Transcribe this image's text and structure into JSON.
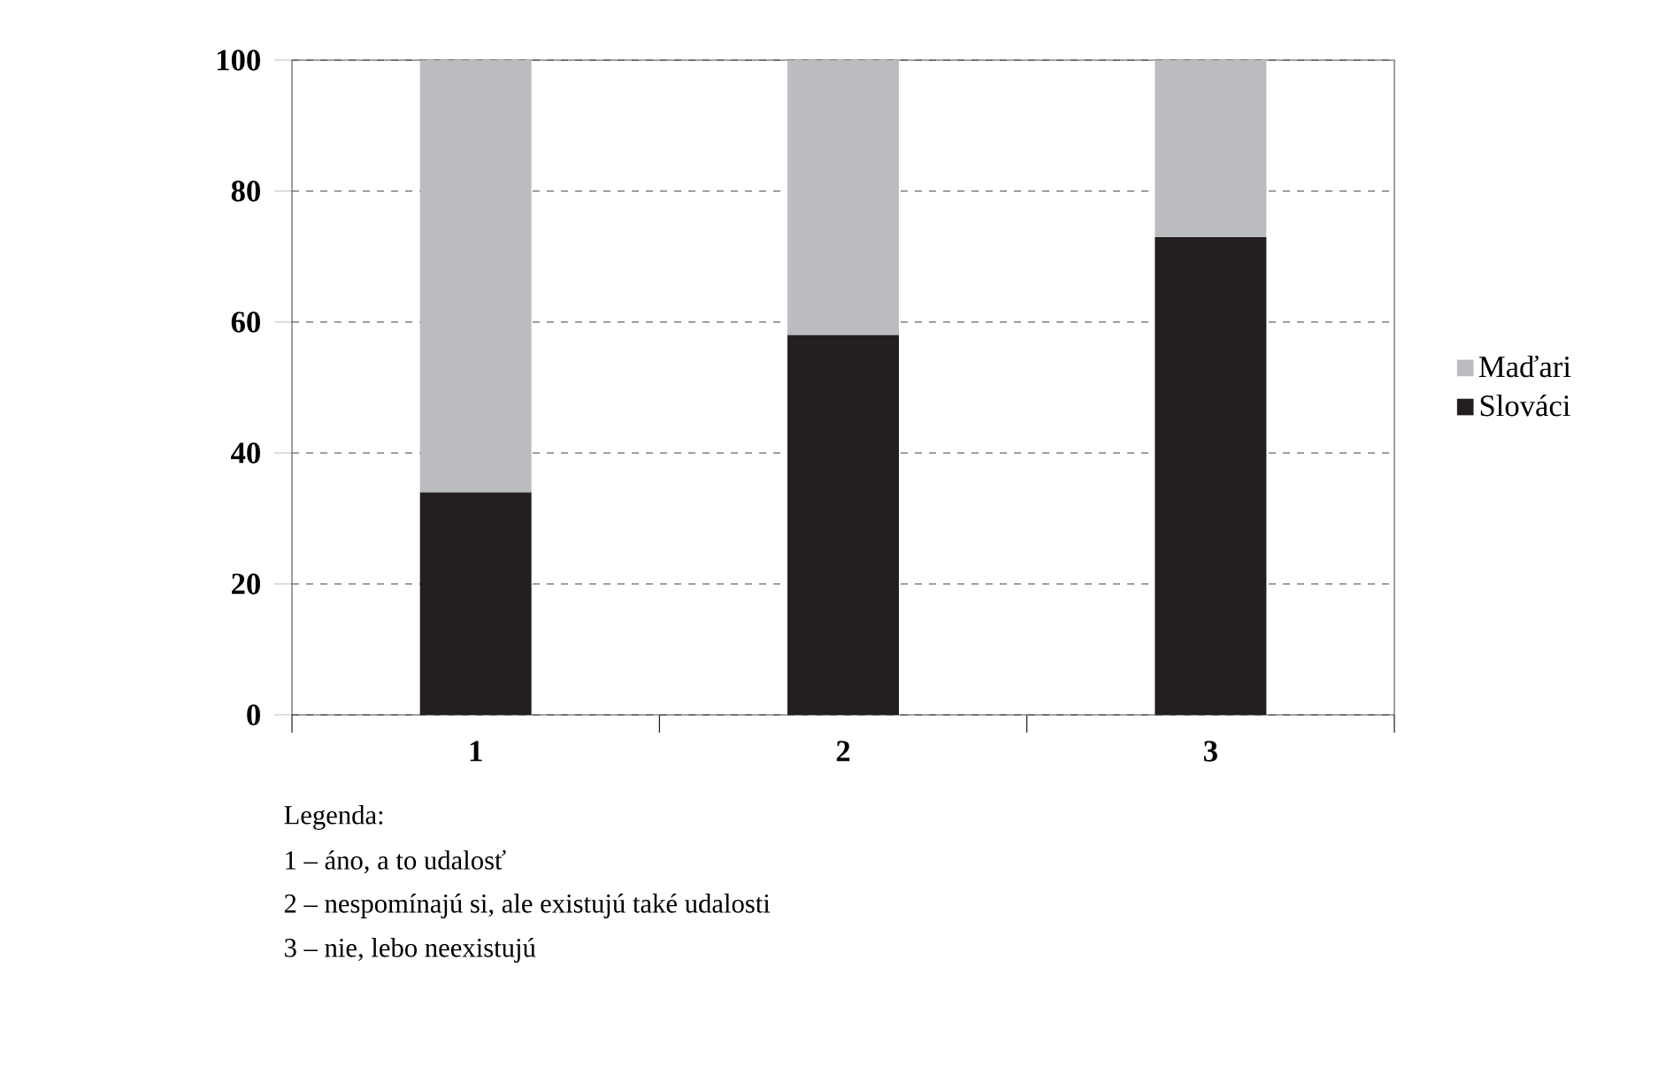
{
  "chart_data": {
    "type": "bar",
    "stacked": true,
    "categories": [
      "1",
      "2",
      "3"
    ],
    "series": [
      {
        "name": "Slováci",
        "color": "#231f20",
        "values": [
          34,
          58,
          73
        ]
      },
      {
        "name": "Maďari",
        "color": "#bbbcbf",
        "values": [
          66,
          42,
          27
        ]
      }
    ],
    "ylim": [
      0,
      100
    ],
    "yticks": [
      0,
      20,
      40,
      60,
      80,
      100
    ],
    "grid": "y",
    "legend": "right",
    "annotations": [
      "Legenda:",
      "1 – áno, a to udalosť",
      "2 – nespomínajú si, ale existujú také udalosti",
      "3 – nie, lebo neexistujú"
    ]
  }
}
